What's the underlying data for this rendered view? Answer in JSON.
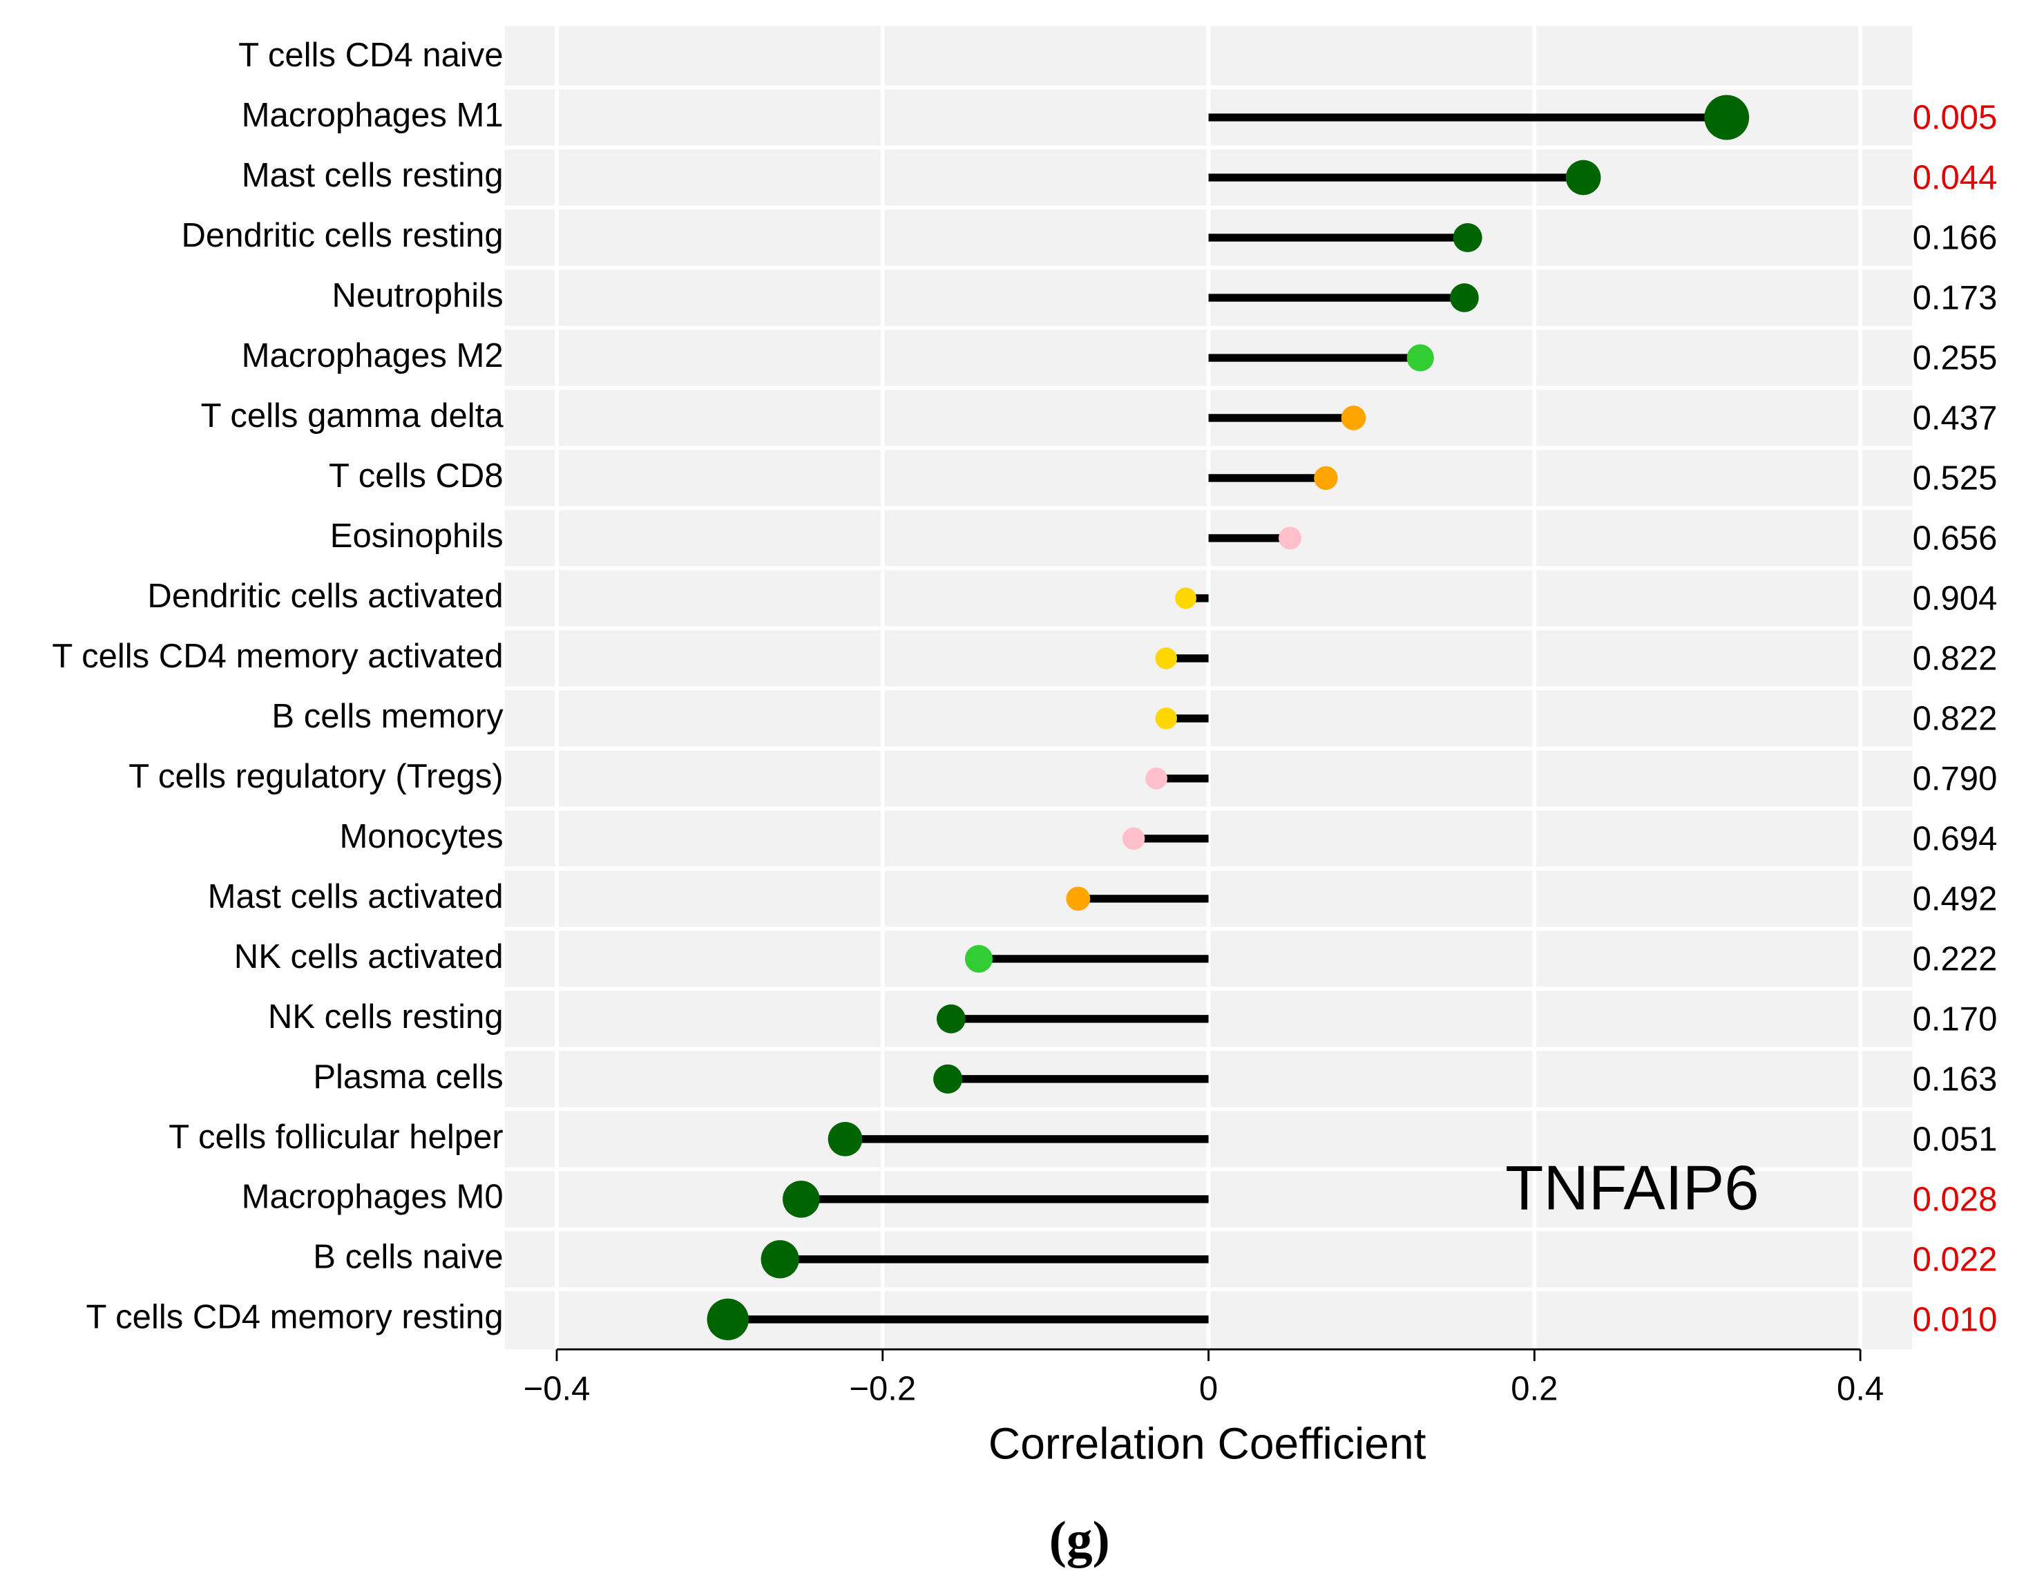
{
  "chart_data": {
    "type": "lollipop",
    "annotation": "TNFAIP6",
    "panel_label": "(g)",
    "x_label": "Correlation Coefficient",
    "categories": [
      "T cells CD4 naive",
      "Macrophages M1",
      "Mast cells resting",
      "Dendritic cells resting",
      "Neutrophils",
      "Macrophages M2",
      "T cells gamma delta",
      "T cells CD8",
      "Eosinophils",
      "Dendritic cells activated",
      "T cells CD4 memory activated",
      "B cells memory",
      "T cells regulatory (Tregs)",
      "Monocytes",
      "Mast cells activated",
      "NK cells activated",
      "NK cells resting",
      "Plasma cells",
      "T cells follicular helper",
      "Macrophages M0",
      "B cells naive",
      "T cells CD4 memory resting"
    ],
    "values": [
      null,
      0.318,
      0.23,
      0.159,
      0.157,
      0.13,
      0.089,
      0.072,
      0.05,
      -0.014,
      -0.026,
      -0.026,
      -0.032,
      -0.046,
      -0.08,
      -0.141,
      -0.158,
      -0.16,
      -0.223,
      -0.25,
      -0.263,
      -0.295
    ],
    "p_values": [
      null,
      0.005,
      0.044,
      0.166,
      0.173,
      0.255,
      0.437,
      0.525,
      0.656,
      0.904,
      0.822,
      0.822,
      0.79,
      0.694,
      0.492,
      0.222,
      0.17,
      0.163,
      0.051,
      0.028,
      0.022,
      0.01
    ],
    "p_value_labels": [
      null,
      "0.005",
      "0.044",
      "0.166",
      "0.173",
      "0.255",
      "0.437",
      "0.525",
      "0.656",
      "0.904",
      "0.822",
      "0.822",
      "0.790",
      "0.694",
      "0.492",
      "0.222",
      "0.170",
      "0.163",
      "0.051",
      "0.028",
      "0.022",
      "0.010"
    ],
    "p_label_colors": [
      null,
      "#e00000",
      "#e00000",
      "#000000",
      "#000000",
      "#000000",
      "#000000",
      "#000000",
      "#000000",
      "#000000",
      "#000000",
      "#000000",
      "#000000",
      "#000000",
      "#000000",
      "#000000",
      "#000000",
      "#000000",
      "#000000",
      "#e00000",
      "#e00000",
      "#e00000"
    ],
    "colors": [
      null,
      "#006400",
      "#006400",
      "#006400",
      "#006400",
      "#32cd32",
      "#ffa500",
      "#ffa500",
      "#ffc0cb",
      "#ffd700",
      "#ffd700",
      "#ffd700",
      "#ffc0cb",
      "#ffc0cb",
      "#ffa500",
      "#32cd32",
      "#006400",
      "#006400",
      "#006400",
      "#006400",
      "#006400",
      "#006400"
    ],
    "stem_color": "#000000",
    "xlim": [
      -0.43,
      0.43
    ],
    "xticks": [
      {
        "value": -0.4,
        "label": "−0.4"
      },
      {
        "value": -0.2,
        "label": "−0.2"
      },
      0,
      0.2,
      0.4
    ],
    "grid": true
  }
}
